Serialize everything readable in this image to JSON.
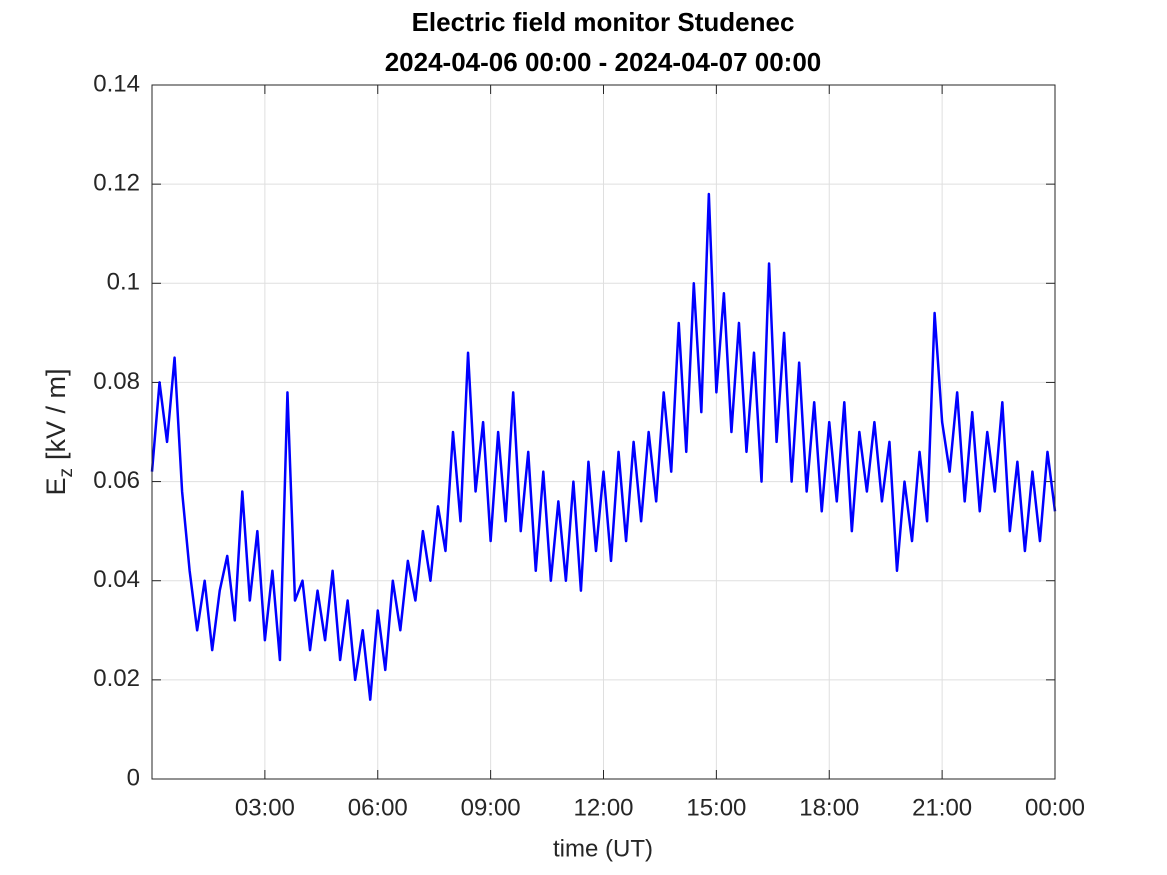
{
  "chart_data": {
    "type": "line",
    "title": [
      "Electric field monitor Studenec",
      "2024-04-06 00:00 - 2024-04-07 00:00"
    ],
    "xlabel": "time (UT)",
    "ylabel": [
      "E",
      "z",
      "[kV / m]"
    ],
    "x": [
      0,
      0.2,
      0.4,
      0.6,
      0.8,
      1,
      1.2,
      1.4,
      1.6,
      1.8,
      2,
      2.2,
      2.4,
      2.6,
      2.8,
      3,
      3.2,
      3.4,
      3.6,
      3.8,
      4,
      4.2,
      4.4,
      4.6,
      4.8,
      5,
      5.2,
      5.4,
      5.6,
      5.8,
      6,
      6.2,
      6.4,
      6.6,
      6.8,
      7,
      7.2,
      7.4,
      7.6,
      7.8,
      8,
      8.2,
      8.4,
      8.6,
      8.8,
      9,
      9.2,
      9.4,
      9.6,
      9.8,
      10,
      10.2,
      10.4,
      10.6,
      10.8,
      11,
      11.2,
      11.4,
      11.6,
      11.8,
      12,
      12.2,
      12.4,
      12.6,
      12.8,
      13,
      13.2,
      13.4,
      13.6,
      13.8,
      14,
      14.2,
      14.4,
      14.6,
      14.8,
      15,
      15.2,
      15.4,
      15.6,
      15.8,
      16,
      16.2,
      16.4,
      16.6,
      16.8,
      17,
      17.2,
      17.4,
      17.6,
      17.8,
      18,
      18.2,
      18.4,
      18.6,
      18.8,
      19,
      19.2,
      19.4,
      19.6,
      19.8,
      20,
      20.2,
      20.4,
      20.6,
      20.8,
      21,
      21.2,
      21.4,
      21.6,
      21.8,
      22,
      22.2,
      22.4,
      22.6,
      22.8,
      23,
      23.2,
      23.4,
      23.6,
      23.8,
      24
    ],
    "series": [
      {
        "color": "#0000ff",
        "values": [
          0.062,
          0.08,
          0.068,
          0.085,
          0.058,
          0.042,
          0.03,
          0.04,
          0.026,
          0.038,
          0.045,
          0.032,
          0.058,
          0.036,
          0.05,
          0.028,
          0.042,
          0.024,
          0.078,
          0.036,
          0.04,
          0.026,
          0.038,
          0.028,
          0.042,
          0.024,
          0.036,
          0.02,
          0.03,
          0.016,
          0.034,
          0.022,
          0.04,
          0.03,
          0.044,
          0.036,
          0.05,
          0.04,
          0.055,
          0.046,
          0.07,
          0.052,
          0.086,
          0.058,
          0.072,
          0.048,
          0.07,
          0.052,
          0.078,
          0.05,
          0.066,
          0.042,
          0.062,
          0.04,
          0.056,
          0.04,
          0.06,
          0.038,
          0.064,
          0.046,
          0.062,
          0.044,
          0.066,
          0.048,
          0.068,
          0.052,
          0.07,
          0.056,
          0.078,
          0.062,
          0.092,
          0.066,
          0.1,
          0.074,
          0.118,
          0.078,
          0.098,
          0.07,
          0.092,
          0.066,
          0.086,
          0.06,
          0.104,
          0.068,
          0.09,
          0.06,
          0.084,
          0.058,
          0.076,
          0.054,
          0.072,
          0.056,
          0.076,
          0.05,
          0.07,
          0.058,
          0.072,
          0.056,
          0.068,
          0.042,
          0.06,
          0.048,
          0.066,
          0.052,
          0.094,
          0.072,
          0.062,
          0.078,
          0.056,
          0.074,
          0.054,
          0.07,
          0.058,
          0.076,
          0.05,
          0.064,
          0.046,
          0.062,
          0.048,
          0.066,
          0.054
        ]
      }
    ],
    "xlim": [
      0,
      24
    ],
    "xticks": [
      {
        "value": 3,
        "label": "03:00"
      },
      {
        "value": 6,
        "label": "06:00"
      },
      {
        "value": 9,
        "label": "09:00"
      },
      {
        "value": 12,
        "label": "12:00"
      },
      {
        "value": 15,
        "label": "15:00"
      },
      {
        "value": 18,
        "label": "18:00"
      },
      {
        "value": 21,
        "label": "21:00"
      },
      {
        "value": 24,
        "label": "00:00"
      }
    ],
    "ylim": [
      0,
      0.14
    ],
    "yticks": [
      0,
      0.02,
      0.04,
      0.06,
      0.08,
      0.1,
      0.12,
      0.14
    ],
    "grid": true
  }
}
